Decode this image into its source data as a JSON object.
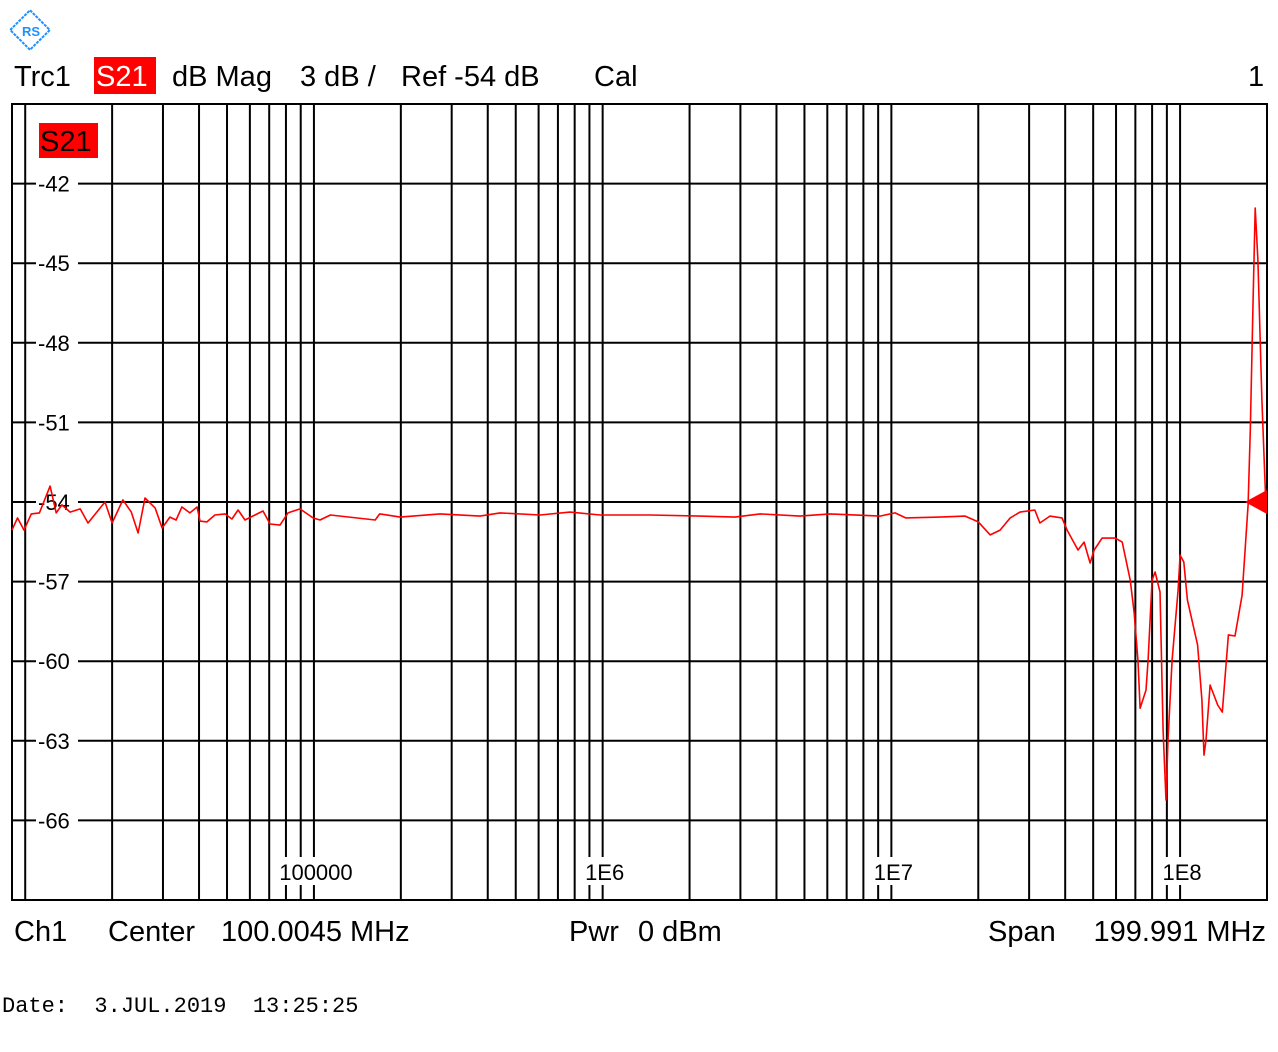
{
  "colors": {
    "trace": "#ff0000",
    "grid": "#000000",
    "logo": "#1e90ff",
    "badge": "#ff0000"
  },
  "header": {
    "trace": "Trc1",
    "param": "S21",
    "format": "dB Mag",
    "scale": "3 dB /",
    "ref": "Ref -54 dB",
    "cal": "Cal",
    "window": "1"
  },
  "trace_label": "S21",
  "footer": {
    "channel": "Ch1",
    "center_label": "Center",
    "center_value": "100.0045 MHz",
    "power_label": "Pwr",
    "power_value": "0 dBm",
    "span_label": "Span",
    "span_value": "199.991 MHz"
  },
  "date_line": "Date:  3.JUL.2019  13:25:25",
  "logo_icon": "rohde-schwarz-logo",
  "chart_data": {
    "type": "line",
    "x_scale": "log",
    "xlim": [
      9000,
      200000000
    ],
    "ylim": [
      -69,
      -39
    ],
    "y_ticks": [
      -42,
      -45,
      -48,
      -51,
      -54,
      -57,
      -60,
      -63,
      -66
    ],
    "y_tick_labels": [
      "-42",
      "-45",
      "-48",
      "-51",
      "-54",
      "-57",
      "-60",
      "-63",
      "-66"
    ],
    "x_ticks": [
      100000,
      1000000,
      10000000,
      100000000
    ],
    "x_tick_labels": [
      "100000",
      "1E6",
      "1E7",
      "1E8"
    ],
    "grid": true,
    "reference_level": -54,
    "series": [
      {
        "name": "S21",
        "points": [
          [
            9000,
            -55.06
          ],
          [
            9400,
            -54.6
          ],
          [
            9900,
            -55.06
          ],
          [
            10500,
            -54.45
          ],
          [
            11200,
            -54.41
          ],
          [
            12200,
            -53.4
          ],
          [
            12800,
            -54.41
          ],
          [
            13400,
            -54.11
          ],
          [
            14300,
            -54.38
          ],
          [
            15500,
            -54.26
          ],
          [
            16500,
            -54.79
          ],
          [
            17700,
            -54.38
          ],
          [
            18900,
            -54.0
          ],
          [
            20000,
            -54.79
          ],
          [
            21800,
            -53.92
          ],
          [
            23300,
            -54.38
          ],
          [
            24600,
            -55.17
          ],
          [
            26000,
            -53.85
          ],
          [
            28200,
            -54.23
          ],
          [
            29800,
            -54.98
          ],
          [
            31700,
            -54.57
          ],
          [
            33300,
            -54.68
          ],
          [
            34900,
            -54.19
          ],
          [
            37200,
            -54.41
          ],
          [
            39400,
            -54.19
          ],
          [
            40300,
            -54.72
          ],
          [
            42600,
            -54.75
          ],
          [
            45400,
            -54.49
          ],
          [
            49200,
            -54.45
          ],
          [
            52000,
            -54.64
          ],
          [
            54600,
            -54.3
          ],
          [
            57700,
            -54.68
          ],
          [
            62500,
            -54.49
          ],
          [
            66600,
            -54.34
          ],
          [
            70500,
            -54.83
          ],
          [
            76300,
            -54.87
          ],
          [
            81300,
            -54.41
          ],
          [
            89500,
            -54.26
          ],
          [
            99300,
            -54.6
          ],
          [
            105000,
            -54.68
          ],
          [
            114000,
            -54.49
          ],
          [
            163000,
            -54.68
          ],
          [
            169000,
            -54.45
          ],
          [
            199000,
            -54.57
          ],
          [
            273000,
            -54.45
          ],
          [
            376000,
            -54.53
          ],
          [
            441000,
            -54.41
          ],
          [
            607000,
            -54.49
          ],
          [
            771000,
            -54.38
          ],
          [
            980000,
            -54.49
          ],
          [
            1460000,
            -54.49
          ],
          [
            2170000,
            -54.53
          ],
          [
            2870000,
            -54.57
          ],
          [
            3510000,
            -54.45
          ],
          [
            4820000,
            -54.53
          ],
          [
            6130000,
            -54.45
          ],
          [
            9140000,
            -54.53
          ],
          [
            10300000,
            -54.41
          ],
          [
            11200000,
            -54.6
          ],
          [
            14700000,
            -54.57
          ],
          [
            18000000,
            -54.53
          ],
          [
            20000000,
            -54.75
          ],
          [
            22000000,
            -55.24
          ],
          [
            23800000,
            -55.06
          ],
          [
            25800000,
            -54.6
          ],
          [
            27900000,
            -54.38
          ],
          [
            31400000,
            -54.3
          ],
          [
            32700000,
            -54.79
          ],
          [
            35400000,
            -54.53
          ],
          [
            39000000,
            -54.6
          ],
          [
            40600000,
            -55.06
          ],
          [
            44300000,
            -55.81
          ],
          [
            46500000,
            -55.51
          ],
          [
            48800000,
            -56.3
          ],
          [
            50400000,
            -55.81
          ],
          [
            53700000,
            -55.36
          ],
          [
            59600000,
            -55.36
          ],
          [
            63000000,
            -55.51
          ],
          [
            67200000,
            -56.94
          ],
          [
            69300000,
            -58.15
          ],
          [
            71500000,
            -59.99
          ],
          [
            72700000,
            -61.77
          ],
          [
            76200000,
            -61.09
          ],
          [
            77500000,
            -59.96
          ],
          [
            80000000,
            -56.94
          ],
          [
            81900000,
            -56.64
          ],
          [
            85200000,
            -57.39
          ],
          [
            87300000,
            -62.6
          ],
          [
            89400000,
            -65.23
          ],
          [
            90800000,
            -62.97
          ],
          [
            93800000,
            -59.96
          ],
          [
            98400000,
            -57.32
          ],
          [
            100000000,
            -56.0
          ],
          [
            103000000,
            -56.26
          ],
          [
            106000000,
            -57.69
          ],
          [
            115000000,
            -59.39
          ],
          [
            119000000,
            -61.46
          ],
          [
            121000000,
            -63.54
          ],
          [
            123000000,
            -62.97
          ],
          [
            127000000,
            -60.9
          ],
          [
            135000000,
            -61.65
          ],
          [
            140000000,
            -61.92
          ],
          [
            147000000,
            -59.01
          ],
          [
            155000000,
            -59.05
          ],
          [
            164000000,
            -57.51
          ],
          [
            172000000,
            -54.11
          ],
          [
            175000000,
            -51.29
          ],
          [
            179000000,
            -46.38
          ],
          [
            182000000,
            -42.92
          ],
          [
            186000000,
            -44.88
          ],
          [
            192000000,
            -50.15
          ],
          [
            198000000,
            -53.92
          ]
        ]
      }
    ]
  }
}
